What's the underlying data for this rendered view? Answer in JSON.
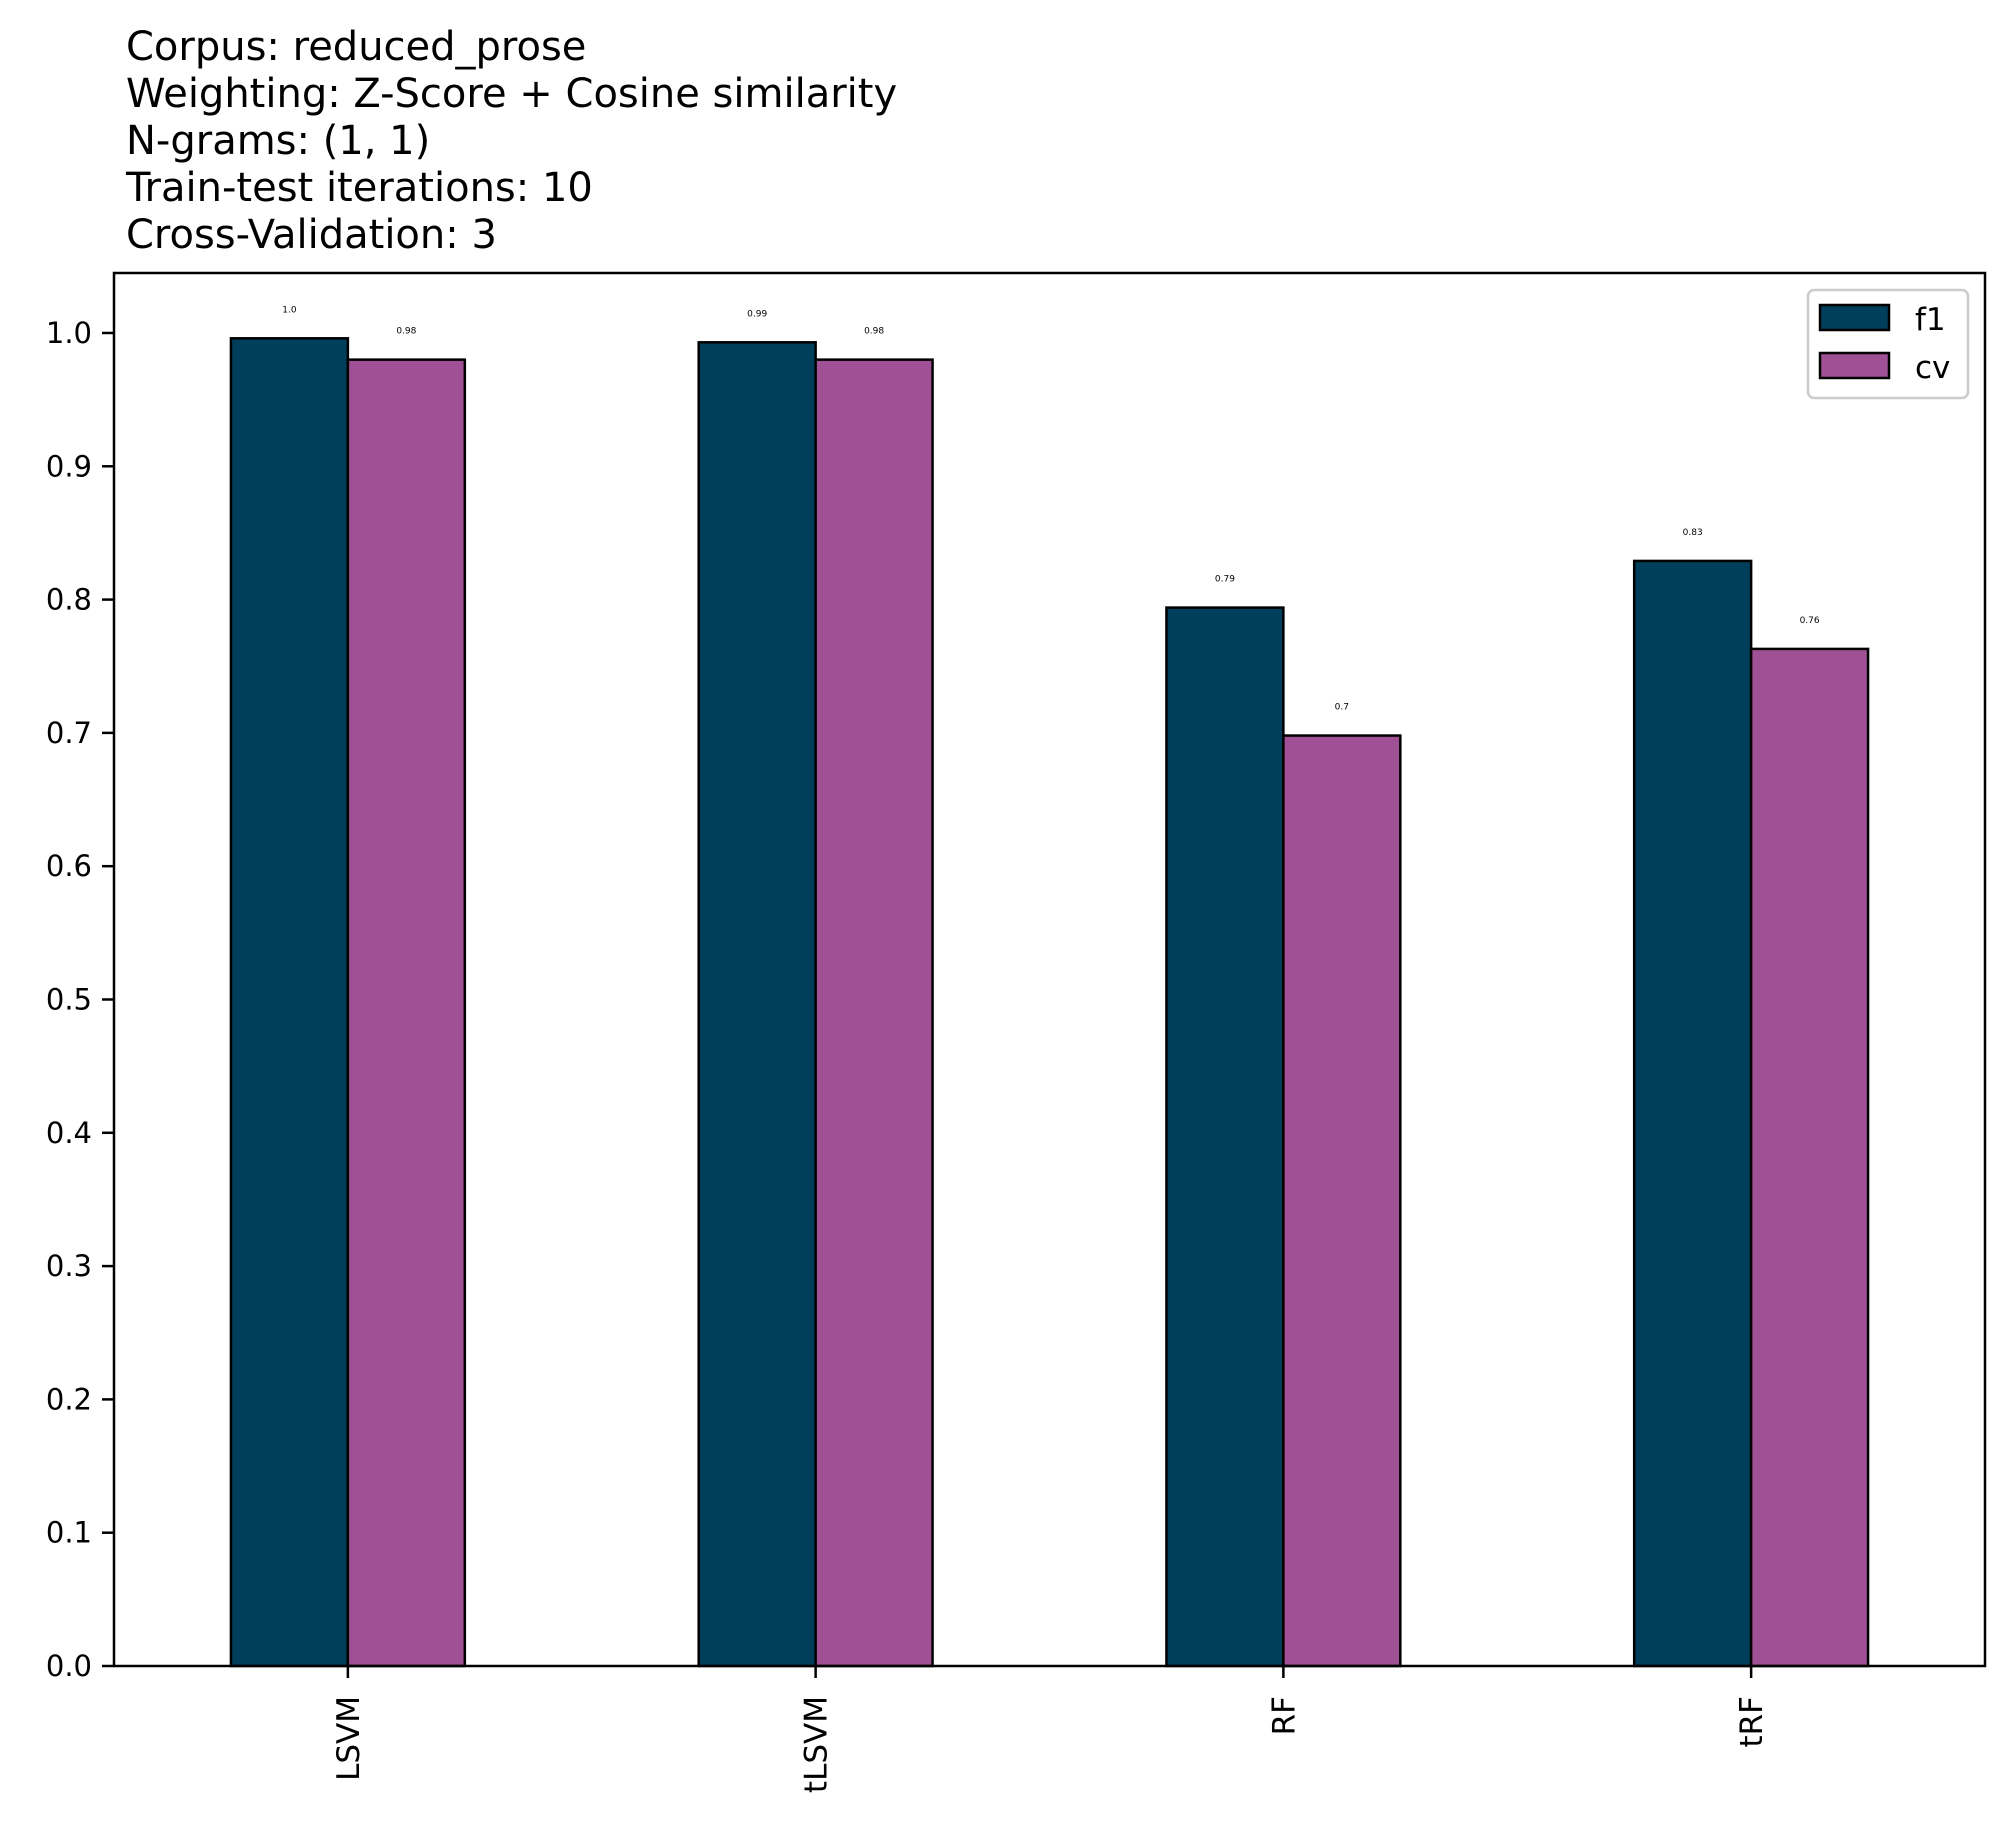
{
  "chart_data": {
    "type": "bar",
    "title_lines": [
      "Corpus: reduced_prose",
      "Weighting: Z-Score + Cosine similarity",
      "N-grams: (1, 1)",
      "Train-test iterations: 10",
      "Cross-Validation: 3"
    ],
    "categories": [
      "LSVM",
      "tLSVM",
      "RF",
      "tRF"
    ],
    "series": [
      {
        "name": "f1",
        "color": "#003f5c",
        "values": [
          0.996,
          0.993,
          0.794,
          0.829
        ],
        "labels": [
          "1.0",
          "0.99",
          "0.79",
          "0.83"
        ]
      },
      {
        "name": "cv",
        "color": "#a05195",
        "values": [
          0.98,
          0.98,
          0.698,
          0.763
        ],
        "labels": [
          "0.98",
          "0.98",
          "0.7",
          "0.76"
        ]
      }
    ],
    "ylim": [
      0,
      1.045
    ],
    "yticks": [
      "0.0",
      "0.1",
      "0.2",
      "0.3",
      "0.4",
      "0.5",
      "0.6",
      "0.7",
      "0.8",
      "0.9",
      "1.0"
    ],
    "xlabel": "",
    "ylabel": "",
    "grid": false,
    "legend_position": "top-right"
  }
}
